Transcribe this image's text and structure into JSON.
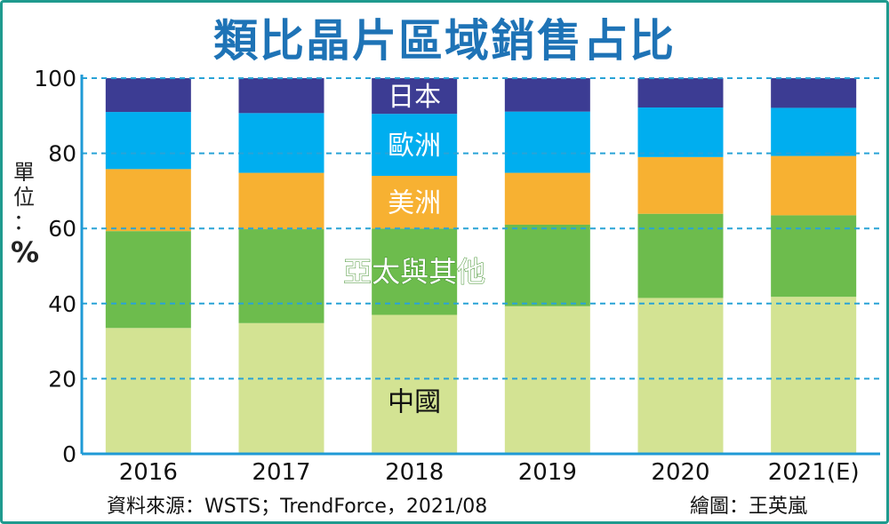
{
  "title": "類比晶片區域銷售占比",
  "unit_label": "單位：",
  "unit_symbol": "%",
  "source": "資料來源：WSTS；TrendForce，2021/08",
  "credit": "繪圖：王英嵐",
  "chart_data": {
    "type": "bar",
    "stacked": true,
    "categories": [
      "2016",
      "2017",
      "2018",
      "2019",
      "2020",
      "2021(E)"
    ],
    "ylim": [
      0,
      100
    ],
    "yticks": [
      "0",
      "20",
      "40",
      "60",
      "80",
      "100"
    ],
    "grid": "horizontal dashed",
    "series": [
      {
        "name": "中國",
        "color": "#d3e393",
        "values": [
          33.5,
          34.8,
          37.0,
          39.3,
          41.5,
          41.8
        ]
      },
      {
        "name": "亞太與其他",
        "color": "#6dbc4d",
        "values": [
          25.8,
          25.0,
          23.0,
          21.7,
          22.4,
          21.7
        ]
      },
      {
        "name": "美洲",
        "color": "#f7b132",
        "values": [
          16.5,
          15.0,
          14.0,
          13.8,
          15.1,
          15.8
        ]
      },
      {
        "name": "歐洲",
        "color": "#00aeef",
        "values": [
          15.2,
          15.9,
          16.5,
          16.3,
          13.2,
          12.8
        ]
      },
      {
        "name": "日本",
        "color": "#3c3c93",
        "values": [
          9.0,
          9.3,
          9.5,
          8.9,
          7.8,
          7.9
        ]
      }
    ],
    "label_column": "2018"
  }
}
